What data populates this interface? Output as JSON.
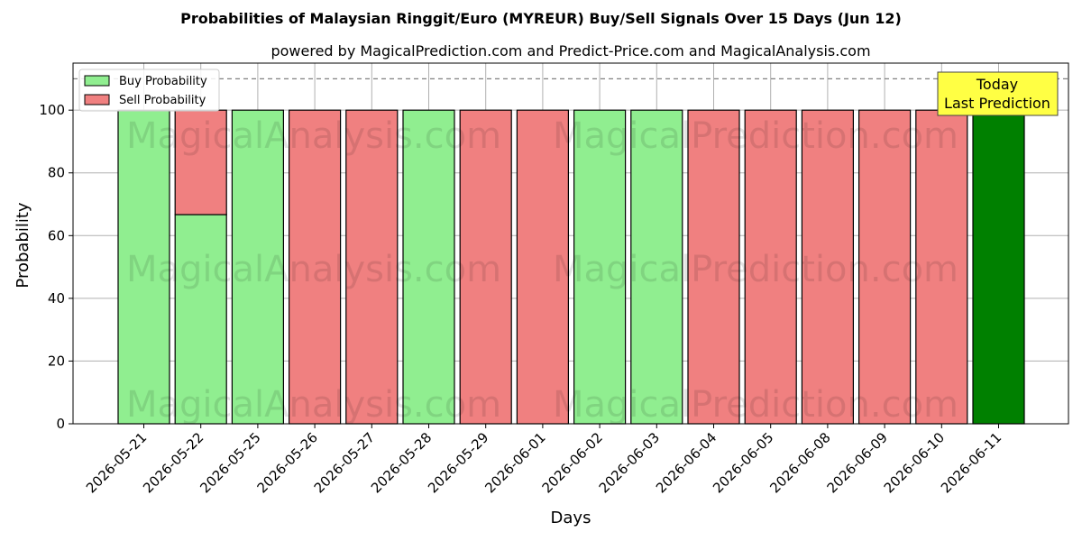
{
  "chart_data": {
    "type": "bar",
    "title": "Probabilities of Malaysian Ringgit/Euro (MYREUR) Buy/Sell Signals Over 15 Days (Jun 12)",
    "subtitle": "powered by MagicalPrediction.com and Predict-Price.com and MagicalAnalysis.com",
    "xlabel": "Days",
    "ylabel": "Probability",
    "ylim": [
      0,
      115
    ],
    "yticks": [
      0,
      20,
      40,
      60,
      80,
      100
    ],
    "grid": true,
    "legend_position": "top-left",
    "reference_line": 110,
    "categories": [
      "2026-05-21",
      "2026-05-22",
      "2026-05-25",
      "2026-05-26",
      "2026-05-27",
      "2026-05-28",
      "2026-05-29",
      "2026-06-01",
      "2026-06-02",
      "2026-06-03",
      "2026-06-04",
      "2026-06-05",
      "2026-06-08",
      "2026-06-09",
      "2026-06-10",
      "2026-06-11"
    ],
    "series": [
      {
        "name": "Buy Probability",
        "color": "#90ee90",
        "values": [
          100,
          66.7,
          100,
          0,
          0,
          100,
          0,
          0,
          100,
          100,
          0,
          0,
          0,
          0,
          0,
          100
        ]
      },
      {
        "name": "Sell Probability",
        "color": "#f08080",
        "values": [
          0,
          33.3,
          0,
          100,
          100,
          0,
          100,
          100,
          0,
          0,
          100,
          100,
          100,
          100,
          100,
          0
        ]
      }
    ],
    "highlight": {
      "index": 15,
      "color": "#008000"
    },
    "annotation": {
      "lines": [
        "Today",
        "Last Prediction"
      ],
      "color": "#ffff44"
    },
    "watermarks": [
      "MagicalAnalysis.com",
      "MagicalPrediction.com"
    ]
  }
}
